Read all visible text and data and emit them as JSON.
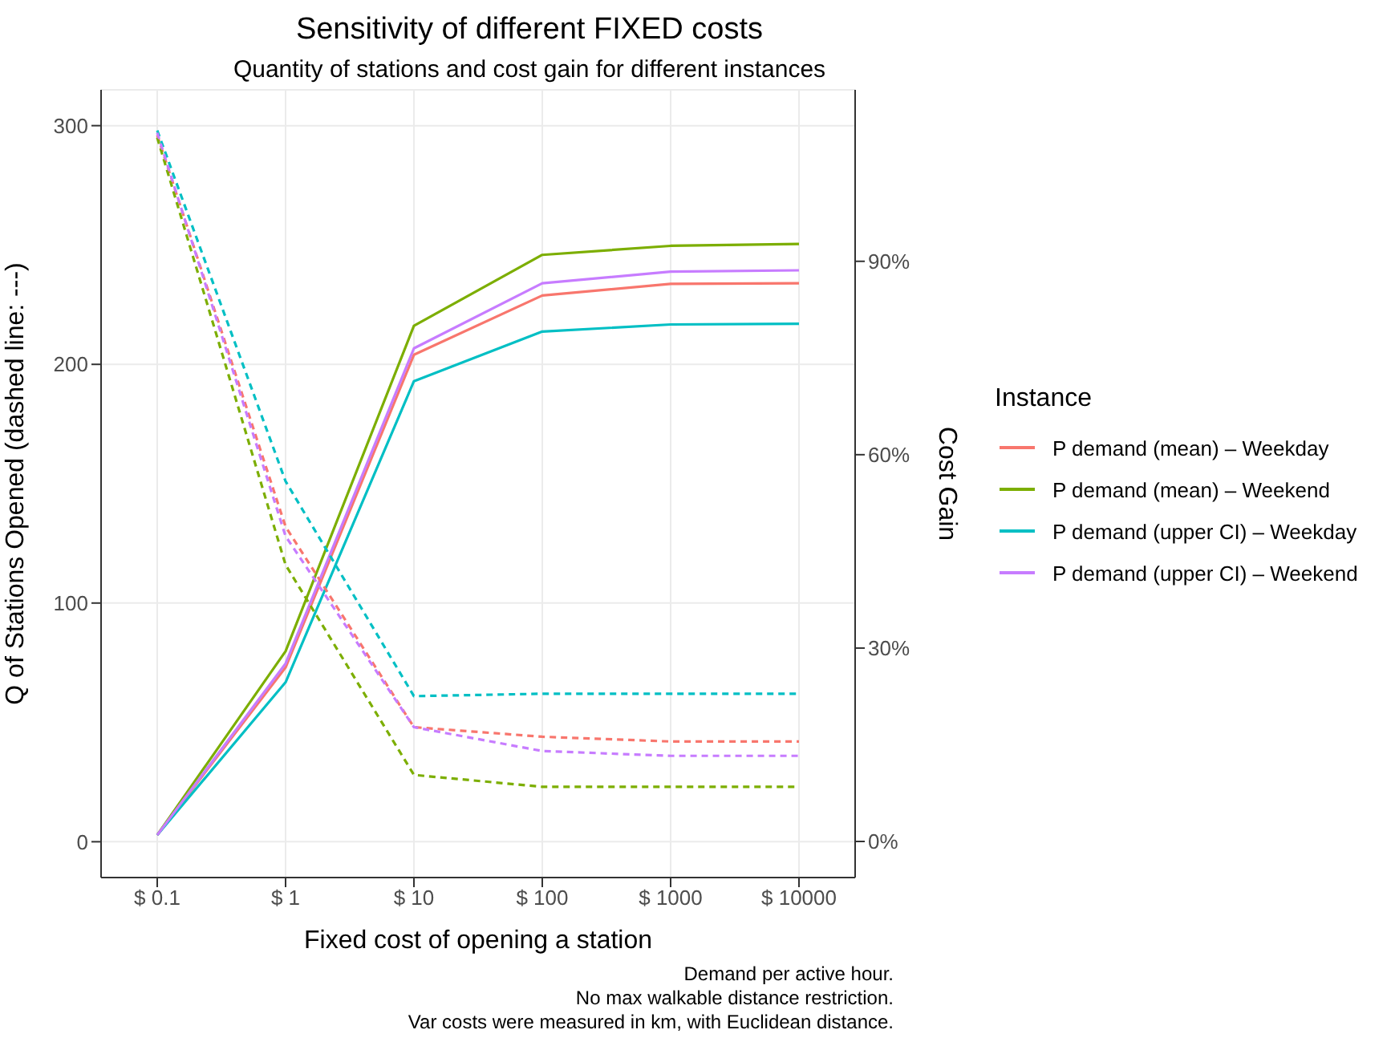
{
  "chart_data": {
    "type": "line",
    "title": "Sensitivity of different FIXED costs",
    "subtitle": "Quantity of stations and cost gain for different instances",
    "xlabel": "Fixed cost of opening a station",
    "ylabel": "Q of Stations Opened (dashed line: ---)",
    "y2label": "Cost Gain",
    "legend_title": "Instance",
    "categories": [
      "$ 0.1",
      "$ 1",
      "$ 10",
      "$ 100",
      "$ 1000",
      "$ 10000"
    ],
    "series": [
      {
        "name": "P demand (mean) – Weekday",
        "color": "#f8766d",
        "axis": "y2",
        "line_style": "solid",
        "values": [
          1,
          27,
          75.5,
          84.7,
          86.5,
          86.6
        ]
      },
      {
        "name": "P demand (mean) – Weekend",
        "color": "#7cae00",
        "axis": "y2",
        "line_style": "solid",
        "values": [
          1,
          29.5,
          80,
          91,
          92.4,
          92.7
        ]
      },
      {
        "name": "P demand (upper CI) – Weekday",
        "color": "#00bfc4",
        "axis": "y2",
        "line_style": "solid",
        "values": [
          1,
          24.7,
          71.4,
          79.1,
          80.2,
          80.3
        ]
      },
      {
        "name": "P demand (upper CI) – Weekend",
        "color": "#c77cff",
        "axis": "y2",
        "line_style": "solid",
        "values": [
          1,
          27.6,
          76.5,
          86.6,
          88.4,
          88.6
        ]
      },
      {
        "color": "#f8766d",
        "axis": "y",
        "line_style": "dashed",
        "values": [
          296,
          132,
          48,
          44,
          42,
          42
        ]
      },
      {
        "color": "#7cae00",
        "axis": "y",
        "line_style": "dashed",
        "values": [
          295,
          116,
          28,
          23,
          23,
          23
        ]
      },
      {
        "color": "#00bfc4",
        "axis": "y",
        "line_style": "dashed",
        "values": [
          298,
          151,
          61,
          62,
          62,
          62
        ]
      },
      {
        "color": "#c77cff",
        "axis": "y",
        "line_style": "dashed",
        "values": [
          297,
          128,
          48,
          38,
          36,
          36
        ]
      }
    ],
    "ylim": [
      -15,
      315
    ],
    "yticks": [
      0,
      100,
      200,
      300
    ],
    "y2lim": [
      -5.6,
      116.6
    ],
    "y2ticks": [
      {
        "value": 0,
        "label": "0%"
      },
      {
        "value": 30,
        "label": "30%"
      },
      {
        "value": 60,
        "label": "60%"
      },
      {
        "value": 90,
        "label": "90%"
      }
    ],
    "grid": true,
    "legend": "right",
    "marker": "none",
    "annotations": [
      "Demand per active hour.",
      "No max walkable distance restriction.",
      "Var costs were measured in km, with Euclidean distance."
    ]
  }
}
